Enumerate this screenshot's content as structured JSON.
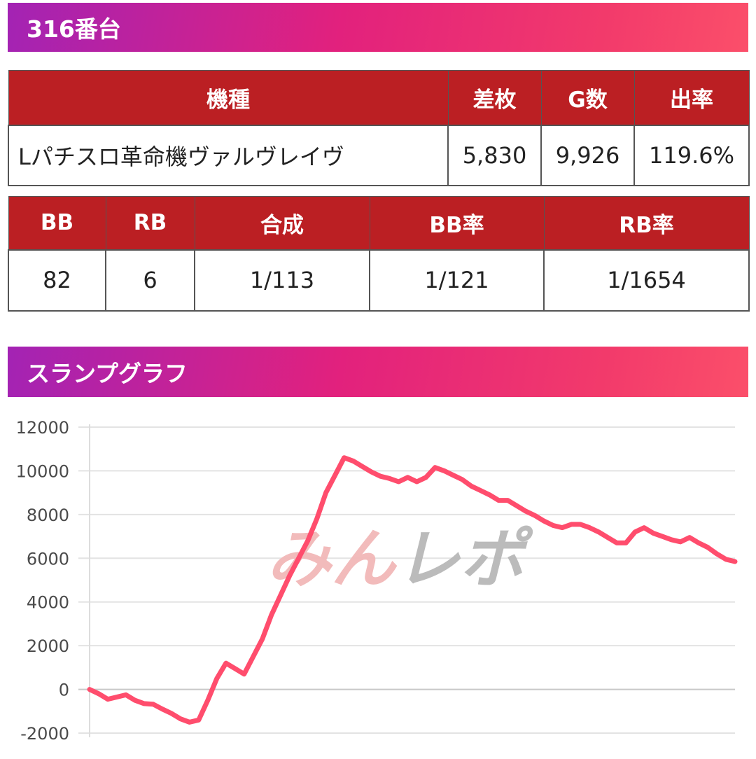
{
  "machine_header": {
    "title": "316番台"
  },
  "summary_table": {
    "headers": {
      "model": "機種",
      "diff": "差枚",
      "games": "G数",
      "payout": "出率"
    },
    "row": {
      "model": "Lパチスロ革命機ヴァルヴレイヴ",
      "diff": "5,830",
      "games": "9,926",
      "payout": "119.6%"
    }
  },
  "bonus_table": {
    "headers": {
      "bb": "BB",
      "rb": "RB",
      "combined": "合成",
      "bb_rate": "BB率",
      "rb_rate": "RB率"
    },
    "row": {
      "bb": "82",
      "rb": "6",
      "combined": "1/113",
      "bb_rate": "1/121",
      "rb_rate": "1/1654"
    }
  },
  "graph_header": {
    "title": "スランプグラフ"
  },
  "watermark": {
    "text": "みんレポ",
    "colors": [
      "#f2b8b8",
      "#b8b8b8"
    ]
  },
  "colors": {
    "header_gradient_start": "#a323b4",
    "header_gradient_end": "#fb4f6a",
    "table_header": "#bb1f23",
    "line": "#ff4d6d"
  },
  "chart_data": {
    "type": "line",
    "title": "",
    "xlabel": "",
    "ylabel": "",
    "ylim": [
      -2000,
      12000
    ],
    "yticks": [
      12000,
      10000,
      8000,
      6000,
      4000,
      2000,
      0,
      -2000
    ],
    "grid": true,
    "series": [
      {
        "color": "#ff4d6d",
        "values": [
          0,
          -200,
          -450,
          -350,
          -250,
          -500,
          -650,
          -680,
          -900,
          -1100,
          -1350,
          -1500,
          -1400,
          -500,
          500,
          1200,
          950,
          700,
          1500,
          2300,
          3400,
          4300,
          5200,
          6000,
          6800,
          7800,
          9000,
          9800,
          10600,
          10450,
          10200,
          9950,
          9750,
          9650,
          9500,
          9700,
          9500,
          9700,
          10150,
          10000,
          9800,
          9600,
          9300,
          9100,
          8900,
          8650,
          8650,
          8400,
          8150,
          7950,
          7700,
          7500,
          7400,
          7550,
          7550,
          7400,
          7200,
          6950,
          6700,
          6700,
          7200,
          7400,
          7150,
          7000,
          6850,
          6750,
          6950,
          6700,
          6500,
          6200,
          5950,
          5850
        ]
      }
    ]
  }
}
